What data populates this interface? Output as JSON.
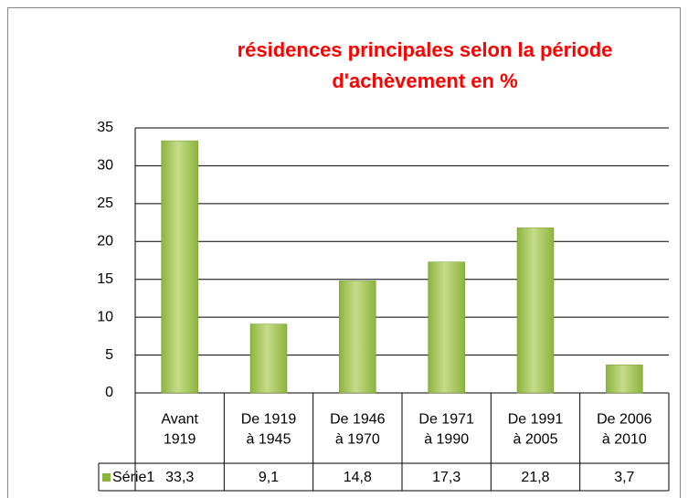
{
  "chart_data": {
    "type": "bar",
    "title": "résidences principales selon la période d'achèvement en %",
    "categories": [
      "Avant\n1919",
      "De 1919\nà 1945",
      "De 1946\nà 1970",
      "De 1971\nà 1990",
      "De 1991\nà 2005",
      "De 2006\nà 2010"
    ],
    "series": [
      {
        "name": "Série1",
        "color": "#8db43e",
        "values": [
          33.3,
          9.1,
          14.8,
          17.3,
          21.8,
          3.7
        ],
        "value_labels": [
          "33,3",
          "9,1",
          "14,8",
          "17,3",
          "21,8",
          "3,7"
        ]
      }
    ],
    "ylim": [
      0,
      35
    ],
    "yticks": [
      0,
      5,
      10,
      15,
      20,
      25,
      30,
      35
    ],
    "grid": true
  }
}
